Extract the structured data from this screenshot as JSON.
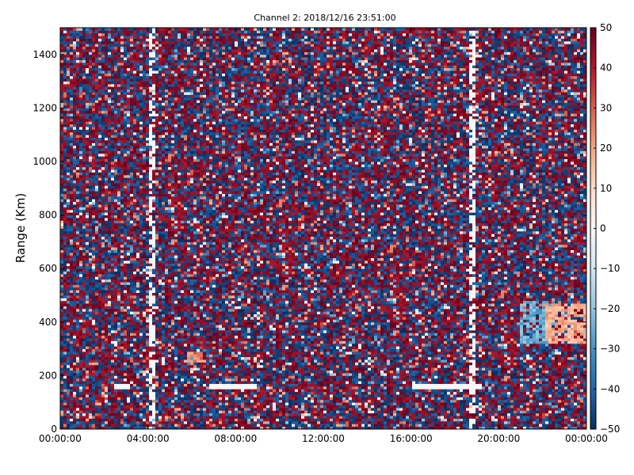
{
  "chart_data": {
    "type": "heatmap",
    "title": "Channel 2: 2018/12/16 23:51:00",
    "xlabel": "",
    "ylabel": "Range (Km)",
    "x_ticks": [
      "00:00:00",
      "04:00:00",
      "08:00:00",
      "12:00:00",
      "16:00:00",
      "20:00:00",
      "00:00:00"
    ],
    "x_range": [
      "2018/12/16 00:00:00",
      "2018/12/17 00:00:00"
    ],
    "y_ticks": [
      0,
      200,
      400,
      600,
      800,
      1000,
      1200,
      1400
    ],
    "ylim": [
      0,
      1500
    ],
    "colorbar": {
      "range": [
        -50,
        50
      ],
      "ticks": [
        -50,
        -40,
        -30,
        -20,
        -10,
        0,
        10,
        20,
        30,
        40,
        50
      ],
      "colormap": "RdBu_r",
      "colors": [
        "#053061",
        "#2166ac",
        "#4393c3",
        "#92c5de",
        "#d1e5f0",
        "#f7f7f7",
        "#fddbc7",
        "#f4a582",
        "#d6604d",
        "#b2182b",
        "#67001f"
      ]
    },
    "grid": false,
    "background_pattern": "random noise across full domain, values mostly near ±50",
    "features": [
      {
        "kind": "white streak",
        "time_start": "06:50:00",
        "time_end": "08:50:00",
        "range_start": 150,
        "range_end": 170
      },
      {
        "kind": "white streak",
        "time_start": "16:10:00",
        "time_end": "19:10:00",
        "range_start": 150,
        "range_end": 170
      },
      {
        "kind": "white streak",
        "time_start": "02:30:00",
        "time_end": "03:10:00",
        "range_start": 150,
        "range_end": 170
      },
      {
        "kind": "white column",
        "time_start": "04:05:00",
        "time_end": "04:15:00",
        "range_start": 0,
        "range_end": 1500
      },
      {
        "kind": "white column",
        "time_start": "18:45:00",
        "time_end": "18:55:00",
        "range_start": 0,
        "range_end": 1500
      },
      {
        "kind": "positive echo",
        "time_start": "05:50:00",
        "time_end": "06:30:00",
        "range_start": 250,
        "range_end": 290,
        "value": 25
      },
      {
        "kind": "negative echo",
        "time_start": "21:00:00",
        "time_end": "22:30:00",
        "range_start": 320,
        "range_end": 480,
        "value": -25
      },
      {
        "kind": "positive echo",
        "time_start": "22:10:00",
        "time_end": "24:00:00",
        "range_start": 320,
        "range_end": 470,
        "value": 18
      }
    ]
  }
}
